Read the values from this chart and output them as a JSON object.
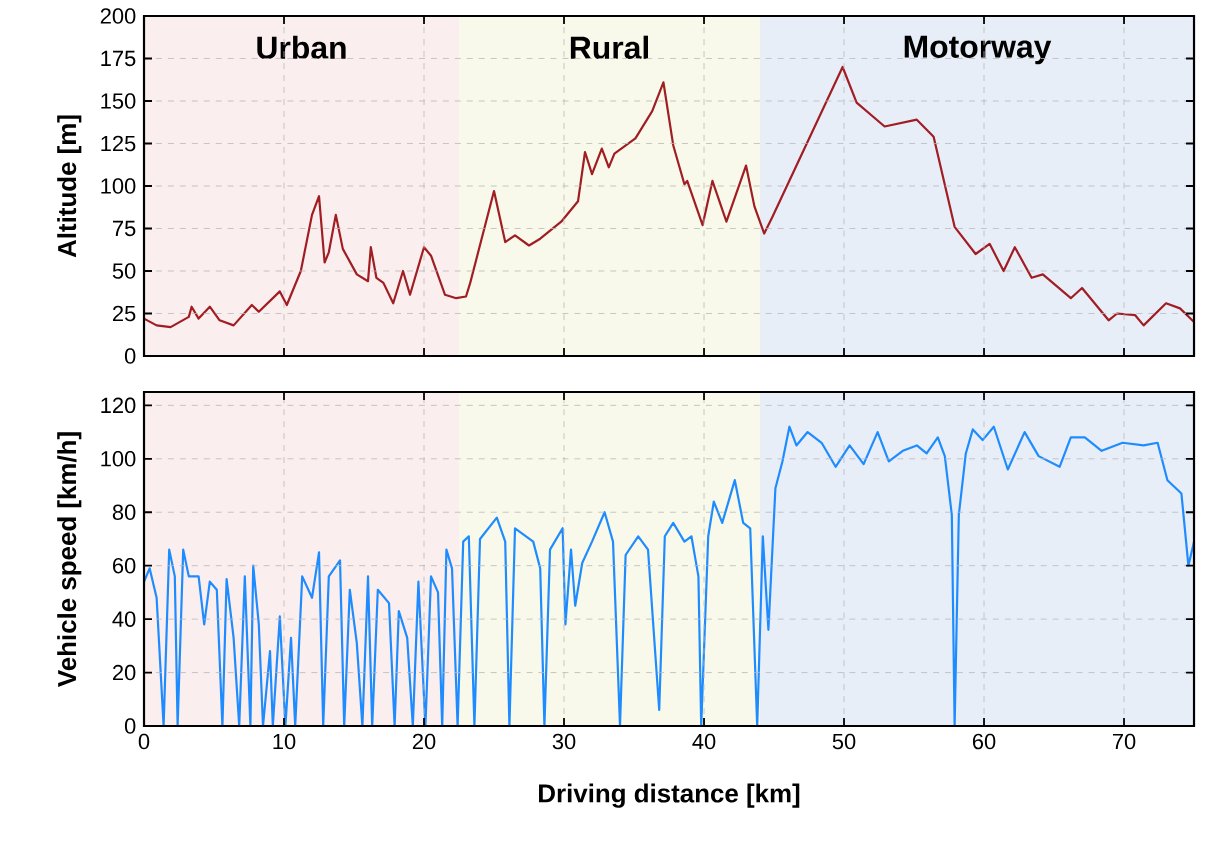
{
  "chart_data": [
    {
      "type": "line",
      "ylabel": "Altitude [m]",
      "color": "#a01e23",
      "x": [
        0,
        0.9,
        1.9,
        3.2,
        3.4,
        3.9,
        4.7,
        5.4,
        6.4,
        7.7,
        8.2,
        9.7,
        10.2,
        11.2,
        12,
        12.5,
        12.9,
        13.2,
        13.7,
        14.2,
        15.2,
        16,
        16.2,
        16.6,
        17.1,
        17.8,
        18.5,
        19,
        20,
        20.5,
        21.5,
        22.3,
        23,
        23.3,
        25,
        25.8,
        26.5,
        27.5,
        28.3,
        29.8,
        31,
        31.5,
        32,
        32.7,
        33.2,
        33.6,
        35.1,
        36.3,
        37.1,
        37.8,
        38.6,
        38.8,
        39.9,
        40.6,
        41.6,
        43,
        43.6,
        44.3,
        44.9,
        49.9,
        50.9,
        52.9,
        55.2,
        56.4,
        57.9,
        59.4,
        60.4,
        61.4,
        62.2,
        63.4,
        64.2,
        66.2,
        67,
        68.9,
        69.5,
        70.8,
        71.4,
        73,
        74,
        75
      ],
      "values": [
        22,
        18,
        17,
        23,
        29,
        22,
        29,
        21,
        18,
        30,
        26,
        38,
        30,
        50,
        83,
        94,
        55,
        61,
        83,
        63,
        48,
        44,
        64,
        46,
        43,
        31,
        50,
        36,
        64,
        59,
        36,
        34,
        35,
        43,
        97,
        67,
        71,
        65,
        69,
        79,
        91,
        120,
        107,
        122,
        111,
        119,
        128,
        144,
        161,
        124,
        101,
        103,
        77,
        103,
        79,
        112,
        88,
        72,
        82,
        170,
        149,
        135,
        139,
        129,
        76,
        60,
        66,
        50,
        64,
        46,
        48,
        34,
        40,
        21,
        25,
        24,
        18,
        31,
        28,
        20
      ],
      "xlim": [
        0,
        75
      ],
      "xticks": [
        0,
        10,
        20,
        30,
        40,
        50,
        60,
        70
      ],
      "ylim": [
        0,
        200
      ],
      "yticks": [
        0,
        25,
        50,
        75,
        100,
        125,
        150,
        175,
        200
      ],
      "tick_labels": "y",
      "grid": true,
      "bands": [
        {
          "axis": "x",
          "from": 0,
          "to": 22.5,
          "label": "Urban",
          "color": "#fbeeee"
        },
        {
          "axis": "x",
          "from": 22.5,
          "to": 44,
          "label": "Rural",
          "color": "#f8f9ea"
        },
        {
          "axis": "x",
          "from": 44,
          "to": 75,
          "label": "Motorway",
          "color": "#e8eef8"
        }
      ]
    },
    {
      "type": "line",
      "ylabel": "Vehicle speed [km/h]",
      "xlabel": "Driving distance [km]",
      "color": "#1e8cff",
      "x": [
        0,
        0.4,
        0.9,
        1.4,
        1.8,
        2.2,
        2.4,
        2.8,
        3.2,
        3.9,
        4.3,
        4.7,
        5.2,
        5.6,
        5.9,
        6.4,
        6.8,
        7.2,
        7.6,
        7.8,
        8.2,
        8.5,
        9,
        9.2,
        9.7,
        10.1,
        10.5,
        10.8,
        11.3,
        12,
        12.5,
        12.8,
        13.2,
        14,
        14.3,
        14.7,
        15.2,
        15.6,
        16,
        16.3,
        16.7,
        17.5,
        17.9,
        18.2,
        18.8,
        19.2,
        19.6,
        20.1,
        20.5,
        21,
        21.3,
        21.6,
        22,
        22.4,
        22.8,
        23.2,
        23.6,
        24,
        25.2,
        25.8,
        26.1,
        26.5,
        27.8,
        28.3,
        28.6,
        29,
        29.9,
        30.1,
        30.5,
        30.8,
        31.3,
        32,
        32.9,
        33.5,
        34,
        34.4,
        35.3,
        36,
        36.8,
        37.2,
        37.8,
        38.6,
        39.1,
        39.6,
        39.8,
        40.3,
        40.7,
        41.3,
        42.2,
        42.8,
        43.3,
        43.8,
        44.2,
        44.6,
        45.1,
        45.6,
        46.1,
        46.6,
        47.4,
        48.4,
        49.4,
        50.4,
        51.4,
        52.4,
        53.2,
        54.2,
        55.2,
        55.9,
        56.7,
        57.2,
        57.7,
        57.9,
        58.2,
        58.7,
        59.2,
        59.9,
        60.7,
        61.7,
        62.9,
        63.9,
        65.4,
        66.2,
        67.2,
        68.4,
        69.9,
        71.4,
        72.4,
        73.1,
        74.1,
        74.6,
        75
      ],
      "values": [
        54,
        59,
        48,
        0,
        66,
        56,
        0,
        66,
        56,
        56,
        38,
        54,
        51,
        0,
        55,
        33,
        0,
        56,
        0,
        60,
        38,
        0,
        28,
        0,
        41,
        0,
        33,
        0,
        56,
        48,
        65,
        0,
        56,
        62,
        0,
        51,
        31,
        0,
        56,
        0,
        51,
        46,
        0,
        43,
        33,
        0,
        54,
        0,
        56,
        50,
        0,
        66,
        59,
        0,
        69,
        71,
        0,
        70,
        78,
        69,
        0,
        74,
        69,
        59,
        0,
        66,
        74,
        38,
        66,
        45,
        61,
        69,
        80,
        69,
        0,
        64,
        71,
        66,
        6,
        71,
        76,
        69,
        71,
        56,
        0,
        71,
        84,
        76,
        92,
        76,
        74,
        0,
        71,
        36,
        89,
        99,
        112,
        105,
        110,
        106,
        97,
        105,
        98,
        110,
        99,
        103,
        105,
        102,
        108,
        101,
        79,
        0,
        79,
        102,
        111,
        107,
        112,
        96,
        110,
        101,
        97,
        108,
        108,
        103,
        106,
        105,
        106,
        92,
        87,
        60,
        69
      ],
      "xlim": [
        0,
        75
      ],
      "xticks": [
        0,
        10,
        20,
        30,
        40,
        50,
        60,
        70
      ],
      "ylim": [
        0,
        125
      ],
      "yticks": [
        0,
        20,
        40,
        60,
        80,
        100,
        120
      ],
      "grid": true,
      "bands": [
        {
          "axis": "x",
          "from": 0,
          "to": 22.5,
          "color": "#fbeeee"
        },
        {
          "axis": "x",
          "from": 22.5,
          "to": 44,
          "color": "#f8f9ea"
        },
        {
          "axis": "x",
          "from": 44,
          "to": 75,
          "color": "#e8eef8"
        }
      ]
    }
  ]
}
